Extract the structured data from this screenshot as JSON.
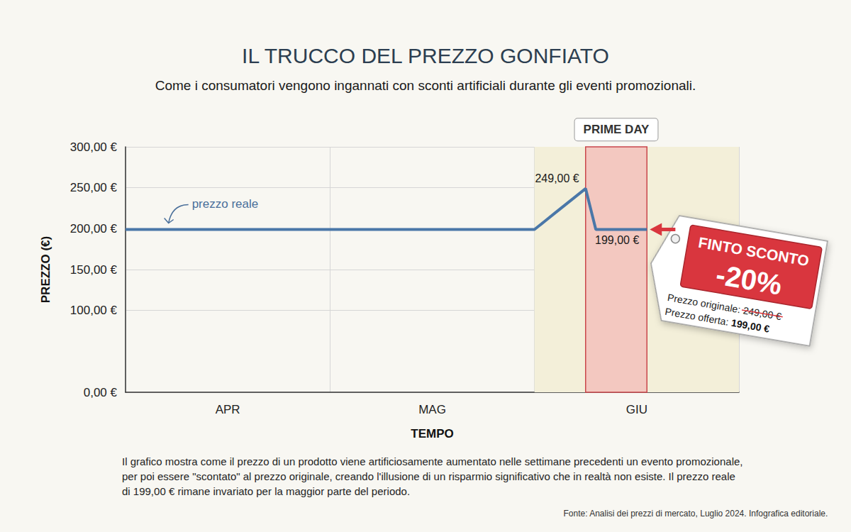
{
  "chart_data": {
    "type": "line",
    "title": "IL TRUCCO DEL PREZZO GONFIATO",
    "subtitle": "Come i consumatori vengono ingannati con sconti artificiali durante gli eventi promozionali.",
    "x_label": "TEMPO",
    "y_label": "PREZZO (€)",
    "categories": [
      null,
      null,
      null,
      null,
      null,
      null,
      null,
      null,
      null,
      null,
      "APR",
      null,
      null,
      null,
      null,
      null,
      null,
      null,
      null,
      null,
      null,
      null,
      null,
      null,
      null,
      null,
      null,
      null,
      null,
      null,
      "MAG",
      null,
      null,
      null,
      null,
      null,
      null,
      null,
      null,
      null,
      null,
      null,
      null,
      null,
      null,
      null,
      null,
      null,
      null,
      null,
      "GIU",
      null,
      null,
      null,
      null,
      null,
      null,
      null,
      null,
      null,
      null
    ],
    "values": [
      199,
      199,
      199,
      199,
      199,
      199,
      199,
      199,
      199,
      199,
      199,
      199,
      199,
      199,
      199,
      199,
      199,
      199,
      199,
      199,
      199,
      199,
      199,
      199,
      199,
      199,
      199,
      199,
      199,
      199,
      199,
      199,
      199,
      199,
      199,
      199,
      199,
      199,
      199,
      199,
      199,
      209,
      219,
      229,
      239,
      249,
      199,
      199,
      199,
      199,
      199,
      199,
      null,
      null,
      null,
      null,
      null,
      null,
      null,
      null,
      null
    ],
    "value_labels": [
      null,
      null,
      null,
      null,
      null,
      null,
      null,
      null,
      null,
      null,
      null,
      null,
      null,
      null,
      null,
      null,
      null,
      null,
      null,
      null,
      null,
      null,
      null,
      null,
      null,
      null,
      null,
      null,
      null,
      null,
      null,
      null,
      null,
      null,
      null,
      null,
      null,
      null,
      null,
      null,
      null,
      null,
      null,
      null,
      null,
      "249,00 €",
      "199,00 €",
      null,
      null,
      null,
      null,
      null,
      null,
      null,
      null,
      null,
      null,
      null,
      null,
      null,
      null
    ],
    "color": "#4a77a8",
    "ylim": [
      0,
      300
    ],
    "yticks": [
      {
        "value": 0,
        "label": "0,00 €"
      },
      {
        "value": 100,
        "label": "100,00 €"
      },
      {
        "value": 150,
        "label": "150,00 €"
      },
      {
        "value": 200,
        "label": "200,00 €"
      },
      {
        "value": 250,
        "label": "250,00 €"
      },
      {
        "value": 300,
        "label": "300,00 €"
      }
    ],
    "grid": true,
    "highlights": [
      {
        "start": 40,
        "end": 60,
        "color": "#f3efd9"
      },
      {
        "start": 45,
        "end": 51,
        "label": "PRIME DAY",
        "color": "#f3c8c0"
      }
    ],
    "annotations": [
      {
        "text": "prezzo reale",
        "index": 4,
        "value": 199
      }
    ],
    "callout": {
      "title": "FINTO SCONTO",
      "discount": "-20%",
      "original_label": "Prezzo originale:",
      "original_price": "249,00 €",
      "offer_label": "Prezzo offerta:",
      "offer_price": "199,00 €"
    }
  },
  "notes": {
    "caption": "Il grafico mostra come il prezzo di un prodotto viene artificiosamente aumentato nelle settimane precedenti un evento promozionale, per poi essere \"scontato\" al prezzo originale, creando l'illusione di un risparmio significativo che in realtà non esiste. Il prezzo reale di 199,00 € rimane invariato per la maggior parte del periodo.",
    "source": "Fonte: Analisi dei prezzi di mercato, Luglio 2024. Infografica editoriale."
  }
}
